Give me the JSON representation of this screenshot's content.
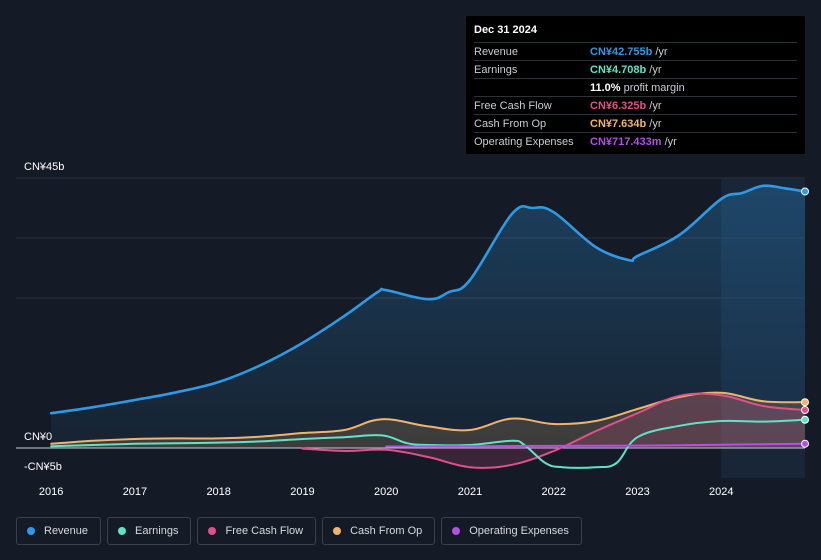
{
  "tooltip": {
    "date": "Dec 31 2024",
    "rows": [
      {
        "label": "Revenue",
        "value": "CN¥42.755b",
        "unit": "/yr",
        "color": "#2e9ae6"
      },
      {
        "label": "Earnings",
        "value": "CN¥4.708b",
        "unit": "/yr",
        "color": "#5fe3c8"
      },
      {
        "label": "",
        "value": "11.0%",
        "unit": "profit margin",
        "color": "#ffffff"
      },
      {
        "label": "Free Cash Flow",
        "value": "CN¥6.325b",
        "unit": "/yr",
        "color": "#e0508a"
      },
      {
        "label": "Cash From Op",
        "value": "CN¥7.634b",
        "unit": "/yr",
        "color": "#f0b46c"
      },
      {
        "label": "Operating Expenses",
        "value": "CN¥717.433m",
        "unit": "/yr",
        "color": "#b44fe8"
      }
    ]
  },
  "legend": [
    {
      "label": "Revenue",
      "color": "#2e9ae6"
    },
    {
      "label": "Earnings",
      "color": "#5fe3c8"
    },
    {
      "label": "Free Cash Flow",
      "color": "#e0508a"
    },
    {
      "label": "Cash From Op",
      "color": "#f0b46c"
    },
    {
      "label": "Operating Expenses",
      "color": "#b44fe8"
    }
  ],
  "chart_data": {
    "type": "line",
    "title": "",
    "ylabel": "",
    "xlabel": "",
    "ylim": [
      -5,
      45
    ],
    "y_tick_labels": {
      "top": "CN¥45b",
      "zero": "CN¥0",
      "bottom": "-CN¥5b"
    },
    "x_tick_labels": [
      "2016",
      "2017",
      "2018",
      "2019",
      "2020",
      "2021",
      "2022",
      "2023",
      "2024"
    ],
    "x_tick_values": [
      2016,
      2017,
      2018,
      2019,
      2020,
      2021,
      2022,
      2023,
      2024
    ],
    "highlight_from": 2024,
    "series": [
      {
        "name": "Revenue",
        "color": "#2e9ae6",
        "fill": true,
        "x": [
          2016,
          2016.5,
          2017,
          2017.5,
          2018,
          2018.5,
          2019,
          2019.5,
          2019.9,
          2020,
          2020.5,
          2020.75,
          2021,
          2021.5,
          2021.75,
          2022,
          2022.5,
          2022.9,
          2023,
          2023.5,
          2024,
          2024.25,
          2024.5,
          2024.75,
          2025
        ],
        "y": [
          5.8,
          6.8,
          8.0,
          9.3,
          11.0,
          13.8,
          17.5,
          22.0,
          26.0,
          26.3,
          24.8,
          26.0,
          28.0,
          39.0,
          40.0,
          39.3,
          33.5,
          31.3,
          32.0,
          35.5,
          41.5,
          42.5,
          43.7,
          43.3,
          42.755
        ]
      },
      {
        "name": "Earnings",
        "color": "#5fe3c8",
        "fill": false,
        "x": [
          2016,
          2016.5,
          2017,
          2017.5,
          2018,
          2018.5,
          2019,
          2019.5,
          2019.95,
          2020.25,
          2020.5,
          2021,
          2021.5,
          2021.65,
          2021.9,
          2022.1,
          2022.5,
          2022.75,
          2023,
          2023.5,
          2024,
          2024.5,
          2025
        ],
        "y": [
          0.3,
          0.5,
          0.7,
          0.8,
          0.9,
          1.1,
          1.5,
          1.8,
          2.1,
          0.8,
          0.5,
          0.5,
          1.2,
          0.5,
          -2.5,
          -3.2,
          -3.2,
          -2.5,
          1.8,
          3.7,
          4.5,
          4.4,
          4.708
        ]
      },
      {
        "name": "Free Cash Flow",
        "color": "#e0508a",
        "fill": true,
        "x": [
          2019,
          2019.5,
          2020,
          2020.5,
          2021,
          2021.5,
          2022,
          2022.5,
          2023,
          2023.5,
          2024,
          2024.5,
          2025
        ],
        "y": [
          -0.1,
          -0.5,
          -0.3,
          -1.5,
          -3.2,
          -2.8,
          -0.5,
          2.8,
          5.8,
          8.7,
          8.8,
          7.0,
          6.325
        ]
      },
      {
        "name": "Cash From Op",
        "color": "#f0b46c",
        "fill": true,
        "x": [
          2016,
          2016.5,
          2017,
          2017.5,
          2018,
          2018.5,
          2019,
          2019.5,
          2019.95,
          2020.5,
          2021,
          2021.5,
          2022,
          2022.5,
          2023,
          2023.5,
          2024,
          2024.5,
          2025
        ],
        "y": [
          0.7,
          1.2,
          1.5,
          1.6,
          1.6,
          1.9,
          2.5,
          3.0,
          4.8,
          3.6,
          3.0,
          4.9,
          4.0,
          4.5,
          6.5,
          8.5,
          9.2,
          7.8,
          7.634
        ]
      },
      {
        "name": "Operating Expenses",
        "color": "#b44fe8",
        "fill": false,
        "x": [
          2020,
          2021,
          2022,
          2023,
          2024,
          2025
        ],
        "y": [
          0.25,
          0.3,
          0.35,
          0.4,
          0.55,
          0.717
        ]
      }
    ]
  }
}
